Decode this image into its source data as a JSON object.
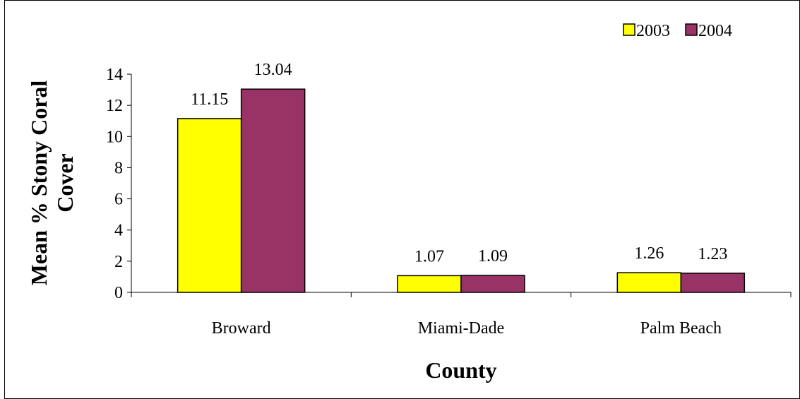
{
  "chart_data": {
    "type": "bar",
    "categories": [
      "Broward",
      "Miami-Dade",
      "Palm Beach"
    ],
    "series": [
      {
        "name": "2003",
        "values": [
          11.15,
          1.07,
          1.26
        ],
        "color": "#FFFF00"
      },
      {
        "name": "2004",
        "values": [
          13.04,
          1.09,
          1.23
        ],
        "color": "#993366"
      }
    ],
    "data_labels": [
      [
        "11.15",
        "1.07",
        "1.26"
      ],
      [
        "13.04",
        "1.09",
        "1.23"
      ]
    ],
    "title": "",
    "xlabel": "County",
    "ylabel_lines": [
      "Mean % Stony Coral",
      "Cover"
    ],
    "ylim": [
      0,
      14
    ],
    "yticks": [
      0,
      2,
      4,
      6,
      8,
      10,
      12,
      14
    ],
    "yticklabels": [
      "0",
      "2",
      "4",
      "6",
      "8",
      "10",
      "12",
      "14"
    ],
    "grid": false,
    "legend_position": "top-right"
  }
}
